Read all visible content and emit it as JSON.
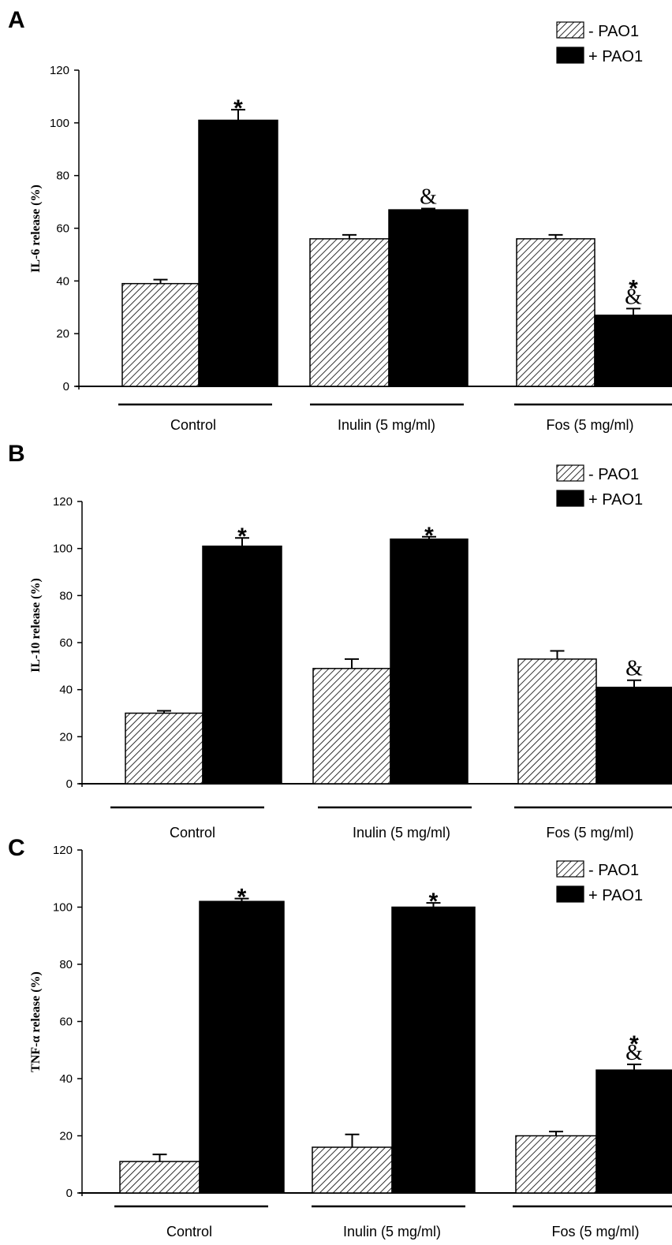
{
  "chart_data": [
    {
      "panel": "A",
      "type": "bar",
      "ylabel": "IL-6 release (%)",
      "ylim": [
        0,
        120
      ],
      "yticks": [
        0,
        20,
        40,
        60,
        80,
        100,
        120
      ],
      "categories": [
        "Control",
        "Inulin (5 mg/ml)",
        "Fos (5 mg/ml)"
      ],
      "series": [
        {
          "name": "- PAO1",
          "pattern": "hatched",
          "values": [
            39,
            56,
            56
          ],
          "errors": [
            1.5,
            1.5,
            1.5
          ]
        },
        {
          "name": "+ PAO1",
          "pattern": "solid",
          "values": [
            101,
            67,
            27
          ],
          "errors": [
            4,
            0.5,
            2.5
          ]
        }
      ],
      "annotations": [
        {
          "category": 0,
          "series": 1,
          "text": "*"
        },
        {
          "category": 1,
          "series": 1,
          "text": "&"
        },
        {
          "category": 2,
          "series": 1,
          "text": "*"
        },
        {
          "category": 2,
          "series": 1,
          "text": "&"
        }
      ],
      "legend": "top-right"
    },
    {
      "panel": "B",
      "type": "bar",
      "ylabel": "IL-10 release (%)",
      "ylim": [
        0,
        120
      ],
      "yticks": [
        0,
        20,
        40,
        60,
        80,
        100,
        120
      ],
      "categories": [
        "Control",
        "Inulin (5 mg/ml)",
        "Fos (5 mg/ml)"
      ],
      "series": [
        {
          "name": "- PAO1",
          "pattern": "hatched",
          "values": [
            30,
            49,
            53
          ],
          "errors": [
            1,
            4,
            3.5
          ]
        },
        {
          "name": "+ PAO1",
          "pattern": "solid",
          "values": [
            101,
            104,
            41
          ],
          "errors": [
            3.5,
            1,
            3
          ]
        }
      ],
      "annotations": [
        {
          "category": 0,
          "series": 1,
          "text": "*"
        },
        {
          "category": 1,
          "series": 1,
          "text": "*"
        },
        {
          "category": 2,
          "series": 1,
          "text": "&"
        }
      ],
      "legend": "top-right"
    },
    {
      "panel": "C",
      "type": "bar",
      "ylabel": "TNF-α release (%)",
      "ylim": [
        0,
        120
      ],
      "yticks": [
        0,
        20,
        40,
        60,
        80,
        100,
        120
      ],
      "categories": [
        "Control",
        "Inulin (5 mg/ml)",
        "Fos (5 mg/ml)"
      ],
      "series": [
        {
          "name": "- PAO1",
          "pattern": "hatched",
          "values": [
            11,
            16,
            20
          ],
          "errors": [
            2.5,
            4.5,
            1.5
          ]
        },
        {
          "name": "+ PAO1",
          "pattern": "solid",
          "values": [
            102,
            100,
            43
          ],
          "errors": [
            1,
            1.5,
            2
          ]
        }
      ],
      "annotations": [
        {
          "category": 0,
          "series": 1,
          "text": "*"
        },
        {
          "category": 1,
          "series": 1,
          "text": "*"
        },
        {
          "category": 2,
          "series": 1,
          "text": "*"
        },
        {
          "category": 2,
          "series": 1,
          "text": "&"
        }
      ],
      "legend": "top-right"
    }
  ]
}
